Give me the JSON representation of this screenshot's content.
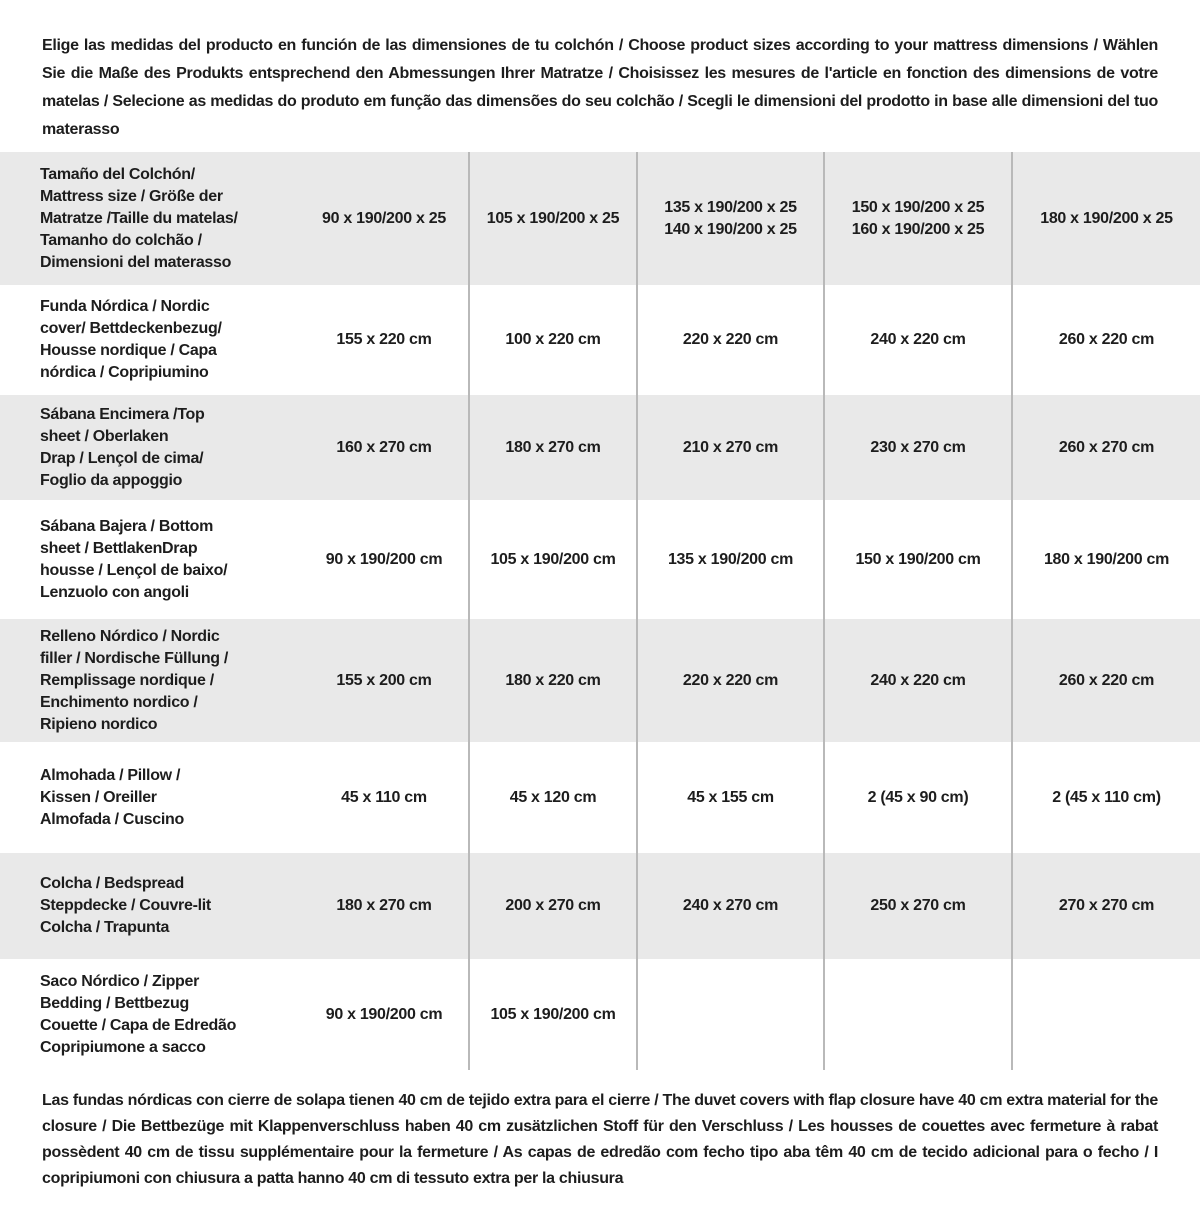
{
  "intro": "Elige las medidas del producto en función de las dimensiones de tu colchón / Choose product sizes according to your mattress dimensions / Wählen Sie die Maße des Produkts entsprechend den Abmessungen Ihrer Matratze / Choisissez les mesures de l'article en fonction des dimensions de votre matelas / Selecione as medidas do produto em função das dimensões do seu colchão / Scegli le dimensioni del prodotto in base alle dimensioni del tuo materasso",
  "table": {
    "header": {
      "label": "Tamaño del Colchón/\nMattress size / Größe der\nMatratze /Taille du matelas/\nTamanho do colchão /\nDimensioni del materasso",
      "values": [
        "90 x 190/200 x 25",
        "105 x 190/200 x 25",
        "135 x 190/200 x 25\n140 x 190/200 x 25",
        "150 x 190/200 x 25\n160 x 190/200 x 25",
        "180 x 190/200 x 25"
      ]
    },
    "rows": [
      {
        "label": "Funda Nórdica /  Nordic\ncover/ Bettdeckenbezug/\nHousse nordique  / Capa\nnórdica / Copripiumino",
        "values": [
          "155 x 220 cm",
          "100 x 220 cm",
          "220 x 220 cm",
          "240 x 220 cm",
          "260 x 220 cm"
        ]
      },
      {
        "label": "Sábana Encimera /Top\nsheet / Oberlaken\nDrap / Lençol de cima/\nFoglio da appoggio",
        "values": [
          "160 x 270 cm",
          "180 x 270 cm",
          "210 x 270 cm",
          "230 x 270 cm",
          "260 x 270 cm"
        ]
      },
      {
        "label": "Sábana Bajera / Bottom\nsheet / BettlakenDrap\nhousse / Lençol de baixo/\nLenzuolo con angoli",
        "values": [
          "90 x 190/200 cm",
          "105 x 190/200 cm",
          "135 x 190/200 cm",
          "150 x 190/200 cm",
          "180 x 190/200 cm"
        ]
      },
      {
        "label": "Relleno Nórdico / Nordic\nfiller / Nordische Füllung /\nRemplissage nordique /\nEnchimento nordico /\nRipieno nordico",
        "values": [
          "155 x 200 cm",
          "180 x 220 cm",
          "220 x 220 cm",
          "240 x 220 cm",
          "260 x 220 cm"
        ]
      },
      {
        "label": "Almohada  / Pillow /\nKissen / Oreiller\nAlmofada / Cuscino",
        "values": [
          "45 x 110 cm",
          "45 x 120 cm",
          "45 x 155 cm",
          "2 (45 x 90 cm)",
          "2 (45 x 110 cm)"
        ]
      },
      {
        "label": "Colcha / Bedspread\nSteppdecke / Couvre-lit\nColcha / Trapunta",
        "values": [
          "180 x 270 cm",
          "200 x 270 cm",
          "240 x 270 cm",
          "250 x 270 cm",
          "270 x 270 cm"
        ]
      },
      {
        "label": "Saco Nórdico / Zipper\nBedding / Bettbezug\nCouette  / Capa de Edredão\nCopripiumone a sacco",
        "values": [
          "90 x 190/200 cm",
          "105 x 190/200 cm",
          "",
          "",
          ""
        ]
      }
    ]
  },
  "footer": "Las fundas nórdicas con cierre de solapa tienen 40 cm de tejido extra para el cierre  / The duvet covers with flap closure have 40 cm extra material for the closure / Die Bettbezüge mit Klappenverschluss haben 40 cm zusätzlichen Stoff für den Verschluss / Les housses de couettes avec fermeture à rabat possèdent 40 cm de tissu supplémentaire pour la fermeture / As capas de edredão com fecho tipo aba têm 40 cm de tecido adicional para o fecho / I copripiumoni con chiusura a patta hanno 40 cm di tessuto extra per la chiusura"
}
